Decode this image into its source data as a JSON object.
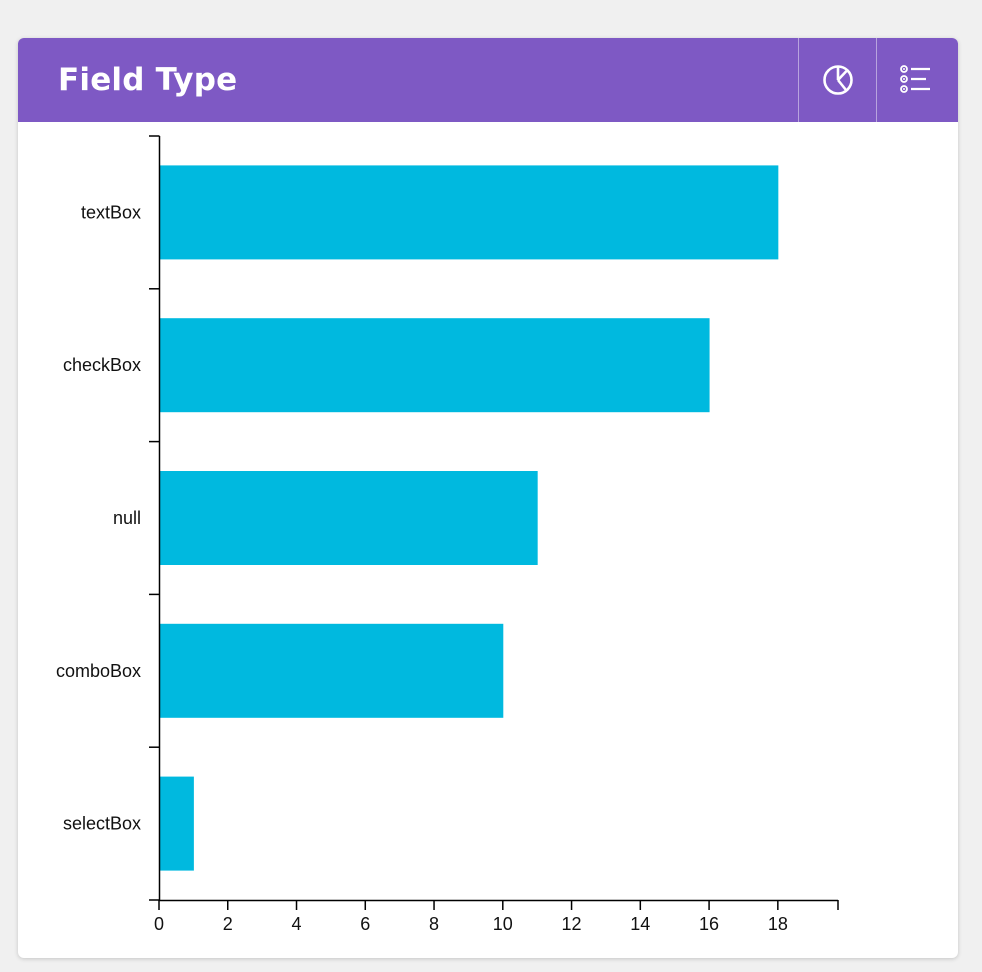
{
  "header": {
    "title": "Field Type",
    "chart_type_icon": "pie-chart-icon",
    "legend_icon": "list-icon",
    "background_color": "#7e59c4"
  },
  "colors": {
    "bar": "#00b9df",
    "axis": "#000000"
  },
  "chart_data": {
    "type": "bar",
    "orientation": "horizontal",
    "categories": [
      "textBox",
      "checkBox",
      "null",
      "comboBox",
      "selectBox"
    ],
    "values": [
      18,
      16,
      11,
      10,
      1
    ],
    "xlim": [
      0,
      19.75
    ],
    "xticks": [
      0,
      2,
      4,
      6,
      8,
      10,
      12,
      14,
      16,
      18
    ],
    "grid": false,
    "legend": "none"
  }
}
